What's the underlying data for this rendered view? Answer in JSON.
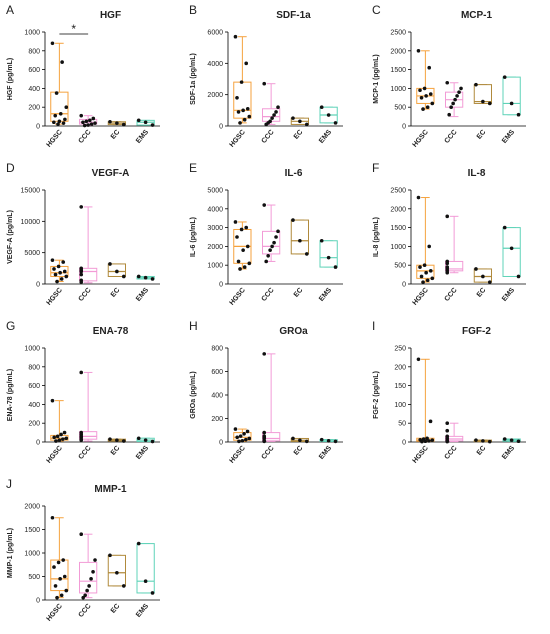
{
  "chart_data": [
    {
      "type": "box",
      "panel": "A",
      "title": "HGF",
      "ylabel": "HGF (pg/mL)",
      "annotation": "*",
      "categories": [
        "HGSC",
        "CCC",
        "EC",
        "EMS"
      ],
      "colors": [
        "#f5a23e",
        "#f29bd6",
        "#b08a3c",
        "#5fd3b8"
      ],
      "ylim": [
        0,
        1000
      ],
      "yticks": [
        0,
        200,
        400,
        600,
        800,
        1000
      ],
      "boxes": [
        {
          "min": 20,
          "q1": 50,
          "median": 130,
          "q3": 360,
          "max": 880,
          "points": [
            880,
            680,
            350,
            200,
            130,
            110,
            70,
            50,
            40,
            30,
            20
          ]
        },
        {
          "min": 5,
          "q1": 20,
          "median": 40,
          "q3": 70,
          "max": 110,
          "points": [
            110,
            80,
            60,
            50,
            40,
            30,
            20,
            10,
            5
          ]
        },
        {
          "min": 15,
          "q1": 15,
          "median": 30,
          "q3": 45,
          "max": 45,
          "points": [
            45,
            30,
            15
          ]
        },
        {
          "min": 10,
          "q1": 10,
          "median": 40,
          "q3": 60,
          "max": 60,
          "points": [
            60,
            40,
            10
          ]
        }
      ]
    },
    {
      "type": "box",
      "panel": "B",
      "title": "SDF-1a",
      "ylabel": "SDF-1a (pg/mL)",
      "categories": [
        "HGSC",
        "CCC",
        "EC",
        "EMS"
      ],
      "colors": [
        "#f5a23e",
        "#f29bd6",
        "#b08a3c",
        "#5fd3b8"
      ],
      "ylim": [
        0,
        6000
      ],
      "yticks": [
        0,
        2000,
        4000,
        6000
      ],
      "boxes": [
        {
          "min": 200,
          "q1": 500,
          "median": 1000,
          "q3": 2800,
          "max": 5700,
          "points": [
            5700,
            4000,
            2800,
            1800,
            1100,
            1000,
            900,
            600,
            400,
            200
          ]
        },
        {
          "min": 100,
          "q1": 300,
          "median": 600,
          "q3": 1100,
          "max": 2700,
          "points": [
            2700,
            1200,
            900,
            700,
            500,
            300,
            200,
            100
          ]
        },
        {
          "min": 100,
          "q1": 100,
          "median": 300,
          "q3": 500,
          "max": 500,
          "points": [
            500,
            300,
            100
          ]
        },
        {
          "min": 200,
          "q1": 200,
          "median": 700,
          "q3": 1200,
          "max": 1200,
          "points": [
            1200,
            700,
            200
          ]
        }
      ]
    },
    {
      "type": "box",
      "panel": "C",
      "title": "MCP-1",
      "ylabel": "MCP-1 (pg/mL)",
      "categories": [
        "HGSC",
        "CCC",
        "EC",
        "EMS"
      ],
      "colors": [
        "#f5a23e",
        "#f29bd6",
        "#b08a3c",
        "#5fd3b8"
      ],
      "ylim": [
        0,
        2500
      ],
      "yticks": [
        0,
        500,
        1000,
        1500,
        2000,
        2500
      ],
      "boxes": [
        {
          "min": 450,
          "q1": 600,
          "median": 800,
          "q3": 1000,
          "max": 2000,
          "points": [
            2000,
            1550,
            1000,
            950,
            850,
            800,
            750,
            600,
            500,
            450
          ]
        },
        {
          "min": 250,
          "q1": 500,
          "median": 700,
          "q3": 900,
          "max": 1150,
          "points": [
            1150,
            1000,
            900,
            800,
            700,
            600,
            500,
            300
          ]
        },
        {
          "min": 600,
          "q1": 600,
          "median": 650,
          "q3": 1100,
          "max": 1100,
          "points": [
            1100,
            650,
            600
          ]
        },
        {
          "min": 300,
          "q1": 300,
          "median": 600,
          "q3": 1300,
          "max": 1300,
          "points": [
            1300,
            600,
            300
          ]
        }
      ]
    },
    {
      "type": "box",
      "panel": "D",
      "title": "VEGF-A",
      "ylabel": "VEGF-A (pg/mL)",
      "categories": [
        "HGSC",
        "CCC",
        "EC",
        "EMS"
      ],
      "colors": [
        "#f5a23e",
        "#f29bd6",
        "#b08a3c",
        "#5fd3b8"
      ],
      "ylim": [
        0,
        15000
      ],
      "yticks": [
        0,
        5000,
        10000,
        15000
      ],
      "boxes": [
        {
          "min": 400,
          "q1": 1200,
          "median": 1800,
          "q3": 2800,
          "max": 3800,
          "points": [
            3800,
            3500,
            2800,
            2400,
            2000,
            1800,
            1500,
            1200,
            800,
            400
          ]
        },
        {
          "min": 200,
          "q1": 500,
          "median": 2000,
          "q3": 2500,
          "max": 12300,
          "points": [
            12300,
            2500,
            2200,
            2000,
            1500,
            600,
            300
          ]
        },
        {
          "min": 1200,
          "q1": 1200,
          "median": 2000,
          "q3": 3200,
          "max": 3200,
          "points": [
            3200,
            2000,
            1200
          ]
        },
        {
          "min": 800,
          "q1": 800,
          "median": 1000,
          "q3": 1200,
          "max": 1200,
          "points": [
            1200,
            1000,
            800
          ]
        }
      ]
    },
    {
      "type": "box",
      "panel": "E",
      "title": "IL-6",
      "ylabel": "IL-6 (pg/mL)",
      "categories": [
        "HGSC",
        "CCC",
        "EC",
        "EMS"
      ],
      "colors": [
        "#f5a23e",
        "#f29bd6",
        "#b08a3c",
        "#5fd3b8"
      ],
      "ylim": [
        0,
        5000
      ],
      "yticks": [
        0,
        1000,
        2000,
        3000,
        4000,
        5000
      ],
      "boxes": [
        {
          "min": 800,
          "q1": 1100,
          "median": 2000,
          "q3": 2900,
          "max": 3300,
          "points": [
            3300,
            3000,
            2900,
            2500,
            2000,
            1800,
            1200,
            1100,
            900,
            800
          ]
        },
        {
          "min": 1200,
          "q1": 1600,
          "median": 2000,
          "q3": 2800,
          "max": 4200,
          "points": [
            4200,
            2800,
            2500,
            2200,
            2000,
            1800,
            1500,
            1200
          ]
        },
        {
          "min": 1600,
          "q1": 1600,
          "median": 2300,
          "q3": 3400,
          "max": 3400,
          "points": [
            3400,
            2300,
            1600
          ]
        },
        {
          "min": 900,
          "q1": 900,
          "median": 1400,
          "q3": 2300,
          "max": 2300,
          "points": [
            2300,
            1400,
            900
          ]
        }
      ]
    },
    {
      "type": "box",
      "panel": "F",
      "title": "IL-8",
      "ylabel": "IL-8 (pg/mL)",
      "categories": [
        "HGSC",
        "CCC",
        "EC",
        "EMS"
      ],
      "colors": [
        "#f5a23e",
        "#f29bd6",
        "#b08a3c",
        "#5fd3b8"
      ],
      "ylim": [
        0,
        2500
      ],
      "yticks": [
        0,
        500,
        1000,
        1500,
        2000,
        2500
      ],
      "boxes": [
        {
          "min": 50,
          "q1": 150,
          "median": 350,
          "q3": 500,
          "max": 2300,
          "points": [
            2300,
            1000,
            500,
            450,
            350,
            300,
            200,
            150,
            100,
            50
          ]
        },
        {
          "min": 300,
          "q1": 350,
          "median": 400,
          "q3": 600,
          "max": 1800,
          "points": [
            1800,
            600,
            550,
            450,
            400,
            350,
            300
          ]
        },
        {
          "min": 50,
          "q1": 50,
          "median": 200,
          "q3": 400,
          "max": 400,
          "points": [
            400,
            200,
            50
          ]
        },
        {
          "min": 200,
          "q1": 200,
          "median": 950,
          "q3": 1500,
          "max": 1500,
          "points": [
            1500,
            950,
            200
          ]
        }
      ]
    },
    {
      "type": "box",
      "panel": "G",
      "title": "ENA-78",
      "ylabel": "ENA-78 (pg/mL)",
      "categories": [
        "HGSC",
        "CCC",
        "EC",
        "EMS"
      ],
      "colors": [
        "#f5a23e",
        "#f29bd6",
        "#b08a3c",
        "#5fd3b8"
      ],
      "ylim": [
        0,
        1000
      ],
      "yticks": [
        0,
        200,
        400,
        600,
        800,
        1000
      ],
      "boxes": [
        {
          "min": 10,
          "q1": 20,
          "median": 40,
          "q3": 70,
          "max": 440,
          "points": [
            440,
            100,
            80,
            60,
            50,
            40,
            30,
            20,
            10
          ]
        },
        {
          "min": 10,
          "q1": 30,
          "median": 60,
          "q3": 110,
          "max": 740,
          "points": [
            740,
            100,
            80,
            60,
            50,
            30,
            20
          ]
        },
        {
          "min": 10,
          "q1": 10,
          "median": 20,
          "q3": 30,
          "max": 30,
          "points": [
            30,
            20,
            10
          ]
        },
        {
          "min": 5,
          "q1": 5,
          "median": 20,
          "q3": 40,
          "max": 40,
          "points": [
            40,
            20,
            5
          ]
        }
      ]
    },
    {
      "type": "box",
      "panel": "H",
      "title": "GROa",
      "ylabel": "GROa (pg/mL)",
      "categories": [
        "HGSC",
        "CCC",
        "EC",
        "EMS"
      ],
      "colors": [
        "#f5a23e",
        "#f29bd6",
        "#b08a3c",
        "#5fd3b8"
      ],
      "ylim": [
        0,
        800
      ],
      "yticks": [
        0,
        200,
        400,
        600,
        800
      ],
      "boxes": [
        {
          "min": 5,
          "q1": 15,
          "median": 40,
          "q3": 80,
          "max": 110,
          "points": [
            110,
            90,
            70,
            50,
            40,
            30,
            20,
            10,
            5
          ]
        },
        {
          "min": 5,
          "q1": 10,
          "median": 30,
          "q3": 80,
          "max": 750,
          "points": [
            750,
            80,
            50,
            40,
            30,
            10,
            5
          ]
        },
        {
          "min": 5,
          "q1": 5,
          "median": 15,
          "q3": 30,
          "max": 30,
          "points": [
            30,
            15,
            5
          ]
        },
        {
          "min": 5,
          "q1": 5,
          "median": 10,
          "q3": 20,
          "max": 20,
          "points": [
            20,
            10,
            5
          ]
        }
      ]
    },
    {
      "type": "box",
      "panel": "I",
      "title": "FGF-2",
      "ylabel": "FGF-2 (pg/mL)",
      "categories": [
        "HGSC",
        "CCC",
        "EC",
        "EMS"
      ],
      "colors": [
        "#f5a23e",
        "#f29bd6",
        "#b08a3c",
        "#5fd3b8"
      ],
      "ylim": [
        0,
        250
      ],
      "yticks": [
        0,
        50,
        100,
        150,
        200,
        250
      ],
      "boxes": [
        {
          "min": 1,
          "q1": 2,
          "median": 5,
          "q3": 10,
          "max": 220,
          "points": [
            220,
            55,
            10,
            8,
            6,
            5,
            3,
            2,
            1
          ]
        },
        {
          "min": 1,
          "q1": 3,
          "median": 8,
          "q3": 15,
          "max": 50,
          "points": [
            50,
            30,
            15,
            10,
            5,
            3,
            1
          ]
        },
        {
          "min": 1,
          "q1": 1,
          "median": 3,
          "q3": 5,
          "max": 5,
          "points": [
            5,
            3,
            1
          ]
        },
        {
          "min": 2,
          "q1": 2,
          "median": 5,
          "q3": 8,
          "max": 8,
          "points": [
            8,
            5,
            2
          ]
        }
      ]
    },
    {
      "type": "box",
      "panel": "J",
      "title": "MMP-1",
      "ylabel": "MMP-1 (pg/mL)",
      "categories": [
        "HGSC",
        "CCC",
        "EC",
        "EMS"
      ],
      "colors": [
        "#f5a23e",
        "#f29bd6",
        "#b08a3c",
        "#5fd3b8"
      ],
      "ylim": [
        0,
        2000
      ],
      "yticks": [
        0,
        500,
        1000,
        1500,
        2000
      ],
      "boxes": [
        {
          "min": 50,
          "q1": 200,
          "median": 450,
          "q3": 850,
          "max": 1750,
          "points": [
            1750,
            850,
            800,
            700,
            500,
            450,
            300,
            200,
            100,
            50
          ]
        },
        {
          "min": 50,
          "q1": 150,
          "median": 400,
          "q3": 800,
          "max": 1400,
          "points": [
            1400,
            850,
            600,
            450,
            300,
            200,
            100,
            50
          ]
        },
        {
          "min": 300,
          "q1": 300,
          "median": 580,
          "q3": 950,
          "max": 950,
          "points": [
            950,
            580,
            300
          ]
        },
        {
          "min": 150,
          "q1": 150,
          "median": 400,
          "q3": 1200,
          "max": 1200,
          "points": [
            1200,
            400,
            150
          ]
        }
      ]
    }
  ]
}
